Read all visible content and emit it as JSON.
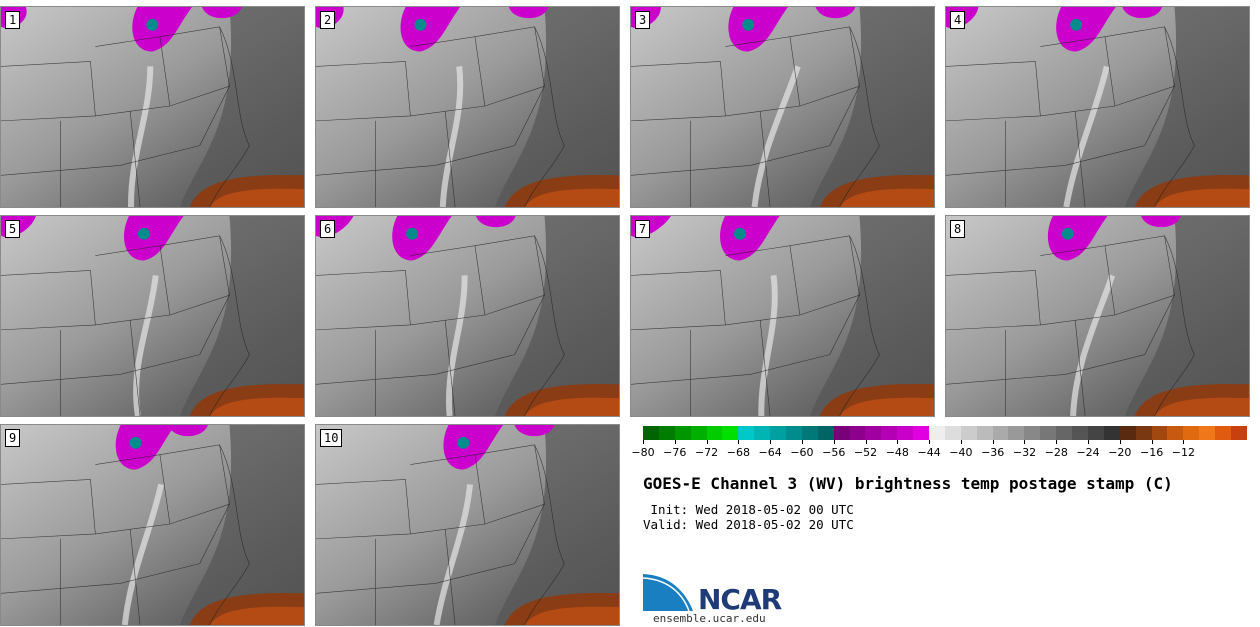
{
  "panels": [
    {
      "label": "1"
    },
    {
      "label": "2"
    },
    {
      "label": "3"
    },
    {
      "label": "4"
    },
    {
      "label": "5"
    },
    {
      "label": "6"
    },
    {
      "label": "7"
    },
    {
      "label": "8"
    },
    {
      "label": "9"
    },
    {
      "label": "10"
    }
  ],
  "colorbar": {
    "ticks": [
      "−80",
      "−76",
      "−72",
      "−68",
      "−64",
      "−60",
      "−56",
      "−52",
      "−48",
      "−44",
      "−40",
      "−36",
      "−32",
      "−28",
      "−24",
      "−20",
      "−16",
      "−12"
    ],
    "colors": [
      "#006400",
      "#007d00",
      "#009600",
      "#00b000",
      "#00cc00",
      "#00e000",
      "#00c8c8",
      "#00b4b4",
      "#00a0a0",
      "#008c8c",
      "#007878",
      "#006464",
      "#7a007a",
      "#8c008c",
      "#a000a0",
      "#b400b4",
      "#c800c8",
      "#e000e0",
      "#eeeeee",
      "#dddddd",
      "#cccccc",
      "#bbbbbb",
      "#aaaaaa",
      "#999999",
      "#888888",
      "#777777",
      "#666666",
      "#555555",
      "#444444",
      "#333333",
      "#5a2a10",
      "#7a3812",
      "#a04810",
      "#c85a10",
      "#e06a10",
      "#f07818",
      "#e05a10",
      "#c84010"
    ]
  },
  "title": "GOES-E Channel 3 (WV) brightness temp postage stamp (C)",
  "init_line": " Init: Wed 2018-05-02 00 UTC",
  "valid_line": "Valid: Wed 2018-05-02 20 UTC",
  "logo": {
    "text": "NCAR",
    "url": "ensemble.ucar.edu"
  }
}
